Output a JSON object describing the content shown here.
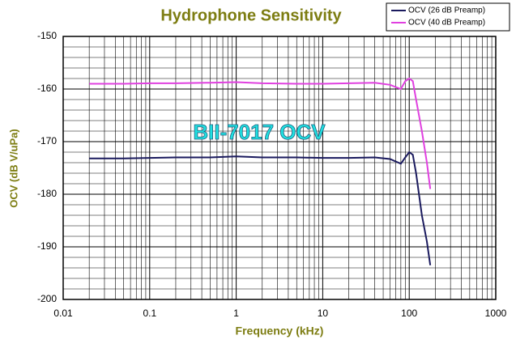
{
  "chart_data": {
    "type": "line",
    "title": "Hydrophone Sensitivity",
    "xlabel": "Frequency (kHz)",
    "ylabel": "OCV (dB V/uPa)",
    "annotation": "BII-7017 OCV",
    "x": [
      0.02,
      0.05,
      0.1,
      0.2,
      0.5,
      1,
      2,
      5,
      10,
      20,
      40,
      60,
      80,
      90,
      100,
      110,
      120,
      140,
      160,
      175
    ],
    "series": [
      {
        "name": "OCV (26 dB Preamp)",
        "color": "#1a1a5e",
        "values": [
          -173.2,
          -173.2,
          -173.1,
          -173,
          -173,
          -172.8,
          -173,
          -173,
          -173.1,
          -173.1,
          -173,
          -173.3,
          -174.2,
          -173,
          -172,
          -172.5,
          -176,
          -184,
          -189,
          -193.5
        ]
      },
      {
        "name": "OCV (40 dB Preamp)",
        "color": "#e040e0",
        "values": [
          -159,
          -159,
          -158.9,
          -158.9,
          -158.8,
          -158.7,
          -158.9,
          -159,
          -159,
          -158.9,
          -158.8,
          -159.2,
          -160,
          -158.5,
          -158,
          -158.5,
          -162,
          -168,
          -174,
          -179
        ]
      }
    ],
    "xlim": [
      0.01,
      1000
    ],
    "xticks": [
      0.01,
      0.1,
      1,
      10,
      100,
      1000
    ],
    "xscale": "log",
    "ylim": [
      -200,
      -150
    ],
    "yticks": [
      -200,
      -190,
      -180,
      -170,
      -160,
      -150
    ],
    "grid": true,
    "legend": "upper right"
  }
}
